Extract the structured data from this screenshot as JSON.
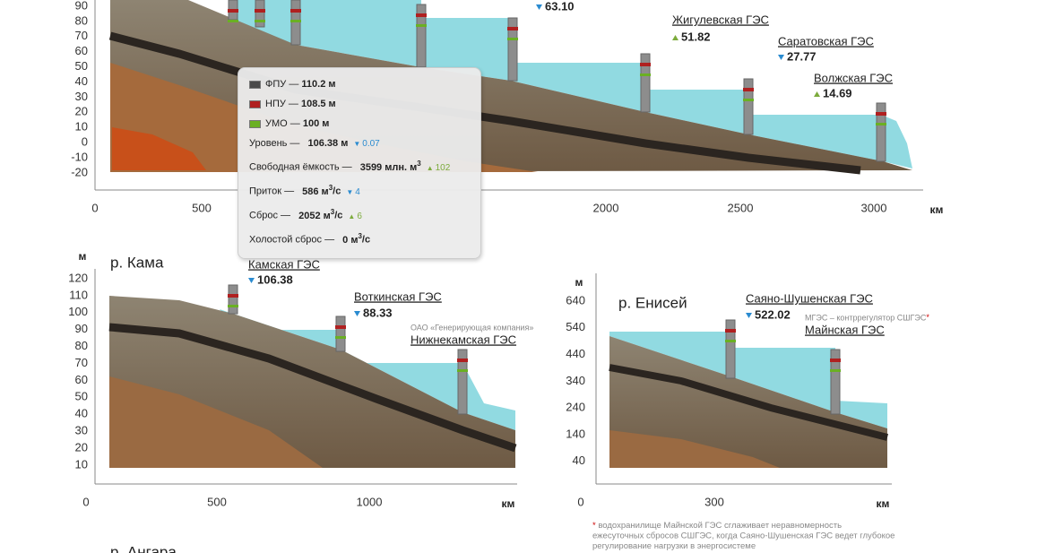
{
  "volga": {
    "y_ticks": [
      90,
      80,
      70,
      60,
      50,
      40,
      30,
      20,
      10,
      0,
      -10,
      -20
    ],
    "x_ticks": [
      0,
      500,
      2000,
      2500,
      3000
    ],
    "x_unit": "км",
    "stations": [
      {
        "level": "63.10",
        "trend": "down"
      },
      {
        "name": "Жигулевская ГЭС",
        "level": "51.82",
        "trend": "up"
      },
      {
        "name": "Саратовская ГЭС",
        "level": "27.77",
        "trend": "down"
      },
      {
        "name": "Волжская ГЭС",
        "level": "14.69",
        "trend": "up"
      }
    ]
  },
  "tooltip": {
    "marks": [
      {
        "label": "ФПУ —",
        "value": "110.2 м",
        "color": "#4a4a4a"
      },
      {
        "label": "НПУ —",
        "value": "108.5 м",
        "color": "#b02020"
      },
      {
        "label": "УМО —",
        "value": "100 м",
        "color": "#6ab023"
      }
    ],
    "rows": [
      {
        "label": "Уровень —",
        "value": "106.38 м",
        "delta": "0.07",
        "trend": "down"
      },
      {
        "label": "Свободная ёмкость —",
        "value": "3599 млн. м",
        "sup": "3",
        "delta": "102",
        "trend": "up"
      },
      {
        "label": "Приток —",
        "value": "586 м",
        "sup": "3",
        "tail": "/с",
        "delta": "4",
        "trend": "down"
      },
      {
        "label": "Сброс —",
        "value": "2052 м",
        "sup": "3",
        "tail": "/с",
        "delta": "6",
        "trend": "up"
      },
      {
        "label": "Холостой сброс —",
        "value": "0 м",
        "sup": "3",
        "tail": "/с"
      }
    ]
  },
  "kama": {
    "title": "р. Кама",
    "y_unit": "м",
    "y_ticks": [
      120,
      110,
      100,
      90,
      80,
      70,
      60,
      50,
      40,
      30,
      20,
      10
    ],
    "x_ticks": [
      0,
      500,
      1000
    ],
    "x_unit": "км",
    "stations": [
      {
        "name": "Камская ГЭС",
        "level": "106.38",
        "trend": "down"
      },
      {
        "name": "Воткинская ГЭС",
        "level": "88.33",
        "trend": "down"
      },
      {
        "note": "ОАО «Генерирующая компания»",
        "name": "Нижнекамская ГЭС"
      }
    ]
  },
  "enisey": {
    "title": "р. Енисей",
    "y_unit": "м",
    "y_ticks": [
      640,
      540,
      440,
      340,
      240,
      140,
      40
    ],
    "x_ticks": [
      0,
      300
    ],
    "x_unit": "км",
    "stations": [
      {
        "name": "Саяно-Шушенская ГЭС",
        "level": "522.02",
        "trend": "down"
      },
      {
        "note": "МГЭС – контррегулятор СШГЭС",
        "note_mark": "*",
        "name": "Майнская ГЭС"
      }
    ]
  },
  "footnote": {
    "mark": "*",
    "lines": [
      "водохранилище Майнской ГЭС сглаживает неравномерность",
      "ежесуточных сбросов СШГЭС, когда Саяно-Шушенская ГЭС ведет глубокое",
      "регулирование нагрузки в энергосистеме"
    ]
  },
  "angara": {
    "title": "р. Ангара"
  }
}
